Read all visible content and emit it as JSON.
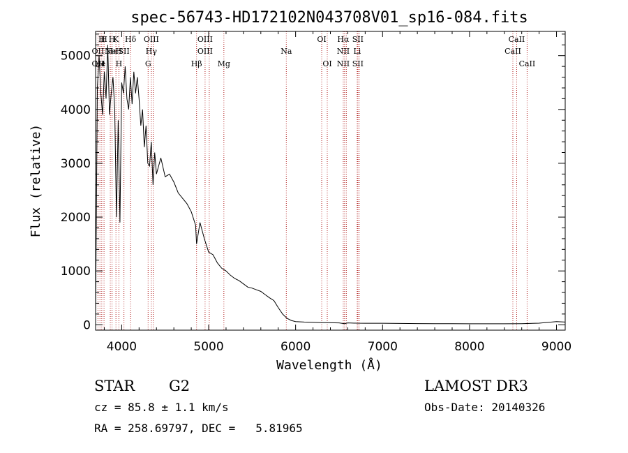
{
  "chart_data": {
    "type": "line",
    "title": "spec-56743-HD172102N043708V01_sp16-084.fits",
    "xlabel": "Wavelength (Å)",
    "ylabel": "Flux (relative)",
    "xlim": [
      3700,
      9100
    ],
    "ylim": [
      -100,
      5450
    ],
    "x_ticks": [
      4000,
      5000,
      6000,
      7000,
      8000,
      9000
    ],
    "x_tick_labels": [
      "4000",
      "5000",
      "6000",
      "7000",
      "8000",
      "9000"
    ],
    "y_ticks": [
      0,
      1000,
      2000,
      3000,
      4000,
      5000
    ],
    "y_tick_labels": [
      "0",
      "1000",
      "2000",
      "3000",
      "4000",
      "5000"
    ],
    "series": [
      {
        "name": "flux",
        "color": "#000000",
        "x": [
          3700,
          3720,
          3740,
          3760,
          3780,
          3800,
          3820,
          3840,
          3860,
          3880,
          3900,
          3920,
          3940,
          3960,
          3980,
          4000,
          4020,
          4040,
          4060,
          4080,
          4100,
          4120,
          4140,
          4160,
          4180,
          4200,
          4220,
          4240,
          4260,
          4280,
          4300,
          4320,
          4340,
          4360,
          4380,
          4400,
          4450,
          4500,
          4550,
          4600,
          4650,
          4700,
          4750,
          4800,
          4850,
          4861,
          4900,
          4950,
          5000,
          5050,
          5100,
          5150,
          5200,
          5250,
          5300,
          5350,
          5400,
          5450,
          5500,
          5550,
          5600,
          5650,
          5700,
          5750,
          5800,
          5850,
          5900,
          5950,
          6000,
          6100,
          6200,
          6300,
          6400,
          6500,
          6563,
          6600,
          6700,
          6800,
          7000,
          7200,
          7400,
          7600,
          7800,
          8000,
          8200,
          8400,
          8600,
          8800,
          9000,
          9100
        ],
        "y": [
          200,
          4400,
          5000,
          4300,
          3900,
          4700,
          4200,
          5200,
          3900,
          4300,
          4600,
          4000,
          2000,
          3800,
          1900,
          4500,
          4300,
          4800,
          4200,
          4000,
          4600,
          4100,
          4700,
          4300,
          4600,
          4200,
          3700,
          4000,
          3300,
          3700,
          3000,
          2950,
          3400,
          2600,
          3200,
          2800,
          3100,
          2750,
          2800,
          2650,
          2450,
          2350,
          2250,
          2100,
          1850,
          1500,
          1900,
          1600,
          1350,
          1300,
          1150,
          1050,
          1000,
          920,
          860,
          820,
          760,
          700,
          680,
          650,
          620,
          560,
          500,
          450,
          320,
          200,
          120,
          80,
          60,
          50,
          45,
          40,
          38,
          35,
          20,
          35,
          30,
          28,
          28,
          25,
          22,
          20,
          20,
          18,
          18,
          18,
          20,
          30,
          60,
          50
        ]
      }
    ],
    "line_markers": [
      {
        "wavelength": 3727,
        "row1": "",
        "row2": "OII",
        "row3": "OII"
      },
      {
        "wavelength": 3750,
        "row1": "",
        "row2": "",
        "row3": "He"
      },
      {
        "wavelength": 3771,
        "row1": "H",
        "row2": "",
        "row3": "H"
      },
      {
        "wavelength": 3797,
        "row1": "H",
        "row2": "",
        "row3": ""
      },
      {
        "wavelength": 3869,
        "row1": "",
        "row2": "Ne",
        "row3": ""
      },
      {
        "wavelength": 3889,
        "row1": "H",
        "row2": "He",
        "row3": ""
      },
      {
        "wavelength": 3934,
        "row1": "K",
        "row2": "",
        "row3": ""
      },
      {
        "wavelength": 3968,
        "row1": "",
        "row2": "H",
        "row3": "H"
      },
      {
        "wavelength": 4026,
        "row1": "",
        "row2": "SII",
        "row3": ""
      },
      {
        "wavelength": 4102,
        "row1": "Hδ",
        "row2": "",
        "row3": ""
      },
      {
        "wavelength": 4304,
        "row1": "",
        "row2": "",
        "row3": "G"
      },
      {
        "wavelength": 4341,
        "row1": "OIII",
        "row2": "Hγ",
        "row3": ""
      },
      {
        "wavelength": 4363,
        "row1": "",
        "row2": "",
        "row3": ""
      },
      {
        "wavelength": 4861,
        "row1": "",
        "row2": "",
        "row3": "Hβ"
      },
      {
        "wavelength": 4959,
        "row1": "OIII",
        "row2": "OIII",
        "row3": ""
      },
      {
        "wavelength": 5007,
        "row1": "",
        "row2": "",
        "row3": ""
      },
      {
        "wavelength": 5175,
        "row1": "",
        "row2": "",
        "row3": "Mg"
      },
      {
        "wavelength": 5893,
        "row1": "",
        "row2": "Na",
        "row3": ""
      },
      {
        "wavelength": 6300,
        "row1": "OI",
        "row2": "",
        "row3": ""
      },
      {
        "wavelength": 6364,
        "row1": "",
        "row2": "",
        "row3": "OI"
      },
      {
        "wavelength": 6548,
        "row1": "Hα",
        "row2": "NII",
        "row3": "NII"
      },
      {
        "wavelength": 6563,
        "row1": "",
        "row2": "",
        "row3": ""
      },
      {
        "wavelength": 6583,
        "row1": "",
        "row2": "",
        "row3": ""
      },
      {
        "wavelength": 6708,
        "row1": "",
        "row2": "Li",
        "row3": ""
      },
      {
        "wavelength": 6716,
        "row1": "SII",
        "row2": "",
        "row3": "SII"
      },
      {
        "wavelength": 6731,
        "row1": "",
        "row2": "",
        "row3": ""
      },
      {
        "wavelength": 8498,
        "row1": "",
        "row2": "CaII",
        "row3": ""
      },
      {
        "wavelength": 8542,
        "row1": "CaII",
        "row2": "",
        "row3": ""
      },
      {
        "wavelength": 8662,
        "row1": "",
        "row2": "",
        "row3": "CaII"
      }
    ]
  },
  "info": {
    "object_class": "STAR",
    "subclass": "G2",
    "survey": "LAMOST DR3",
    "cz": "cz = 85.8 ± 1.1 km/s",
    "obs_date": "Obs-Date: 20140326",
    "radec": "RA = 258.69797, DEC =   5.81965"
  },
  "colors": {
    "line": "#000000",
    "marker": "#b22222",
    "background": "#ffffff"
  }
}
